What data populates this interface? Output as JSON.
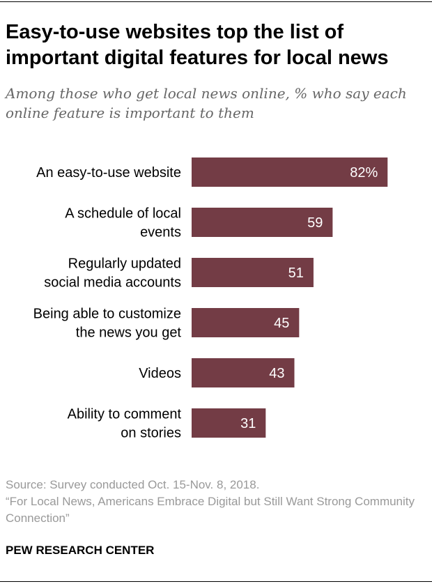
{
  "header": {
    "title": "Easy-to-use websites top the list of important digital features for local news",
    "subtitle": "Among those who get local news online, % who say each online feature is important to them"
  },
  "chart_data": {
    "type": "bar",
    "orientation": "horizontal",
    "categories": [
      [
        "An easy-to-use website"
      ],
      [
        "A schedule of local",
        "events"
      ],
      [
        "Regularly updated",
        "social media accounts"
      ],
      [
        "Being able to customize",
        "the news you get"
      ],
      [
        "Videos"
      ],
      [
        "Ability to comment",
        "on stories"
      ]
    ],
    "values": [
      82,
      59,
      51,
      45,
      43,
      31
    ],
    "data_labels": [
      "82%",
      "59",
      "51",
      "45",
      "43",
      "31"
    ],
    "bar_color": "#733c45",
    "label_color": "#ffffff",
    "xlim": [
      0,
      100
    ]
  },
  "footer": {
    "source": "Source: Survey conducted Oct. 15-Nov. 8, 2018.",
    "report": "“For Local News, Americans Embrace Digital but Still Want Strong Community Connection”",
    "brand": "PEW RESEARCH CENTER"
  }
}
